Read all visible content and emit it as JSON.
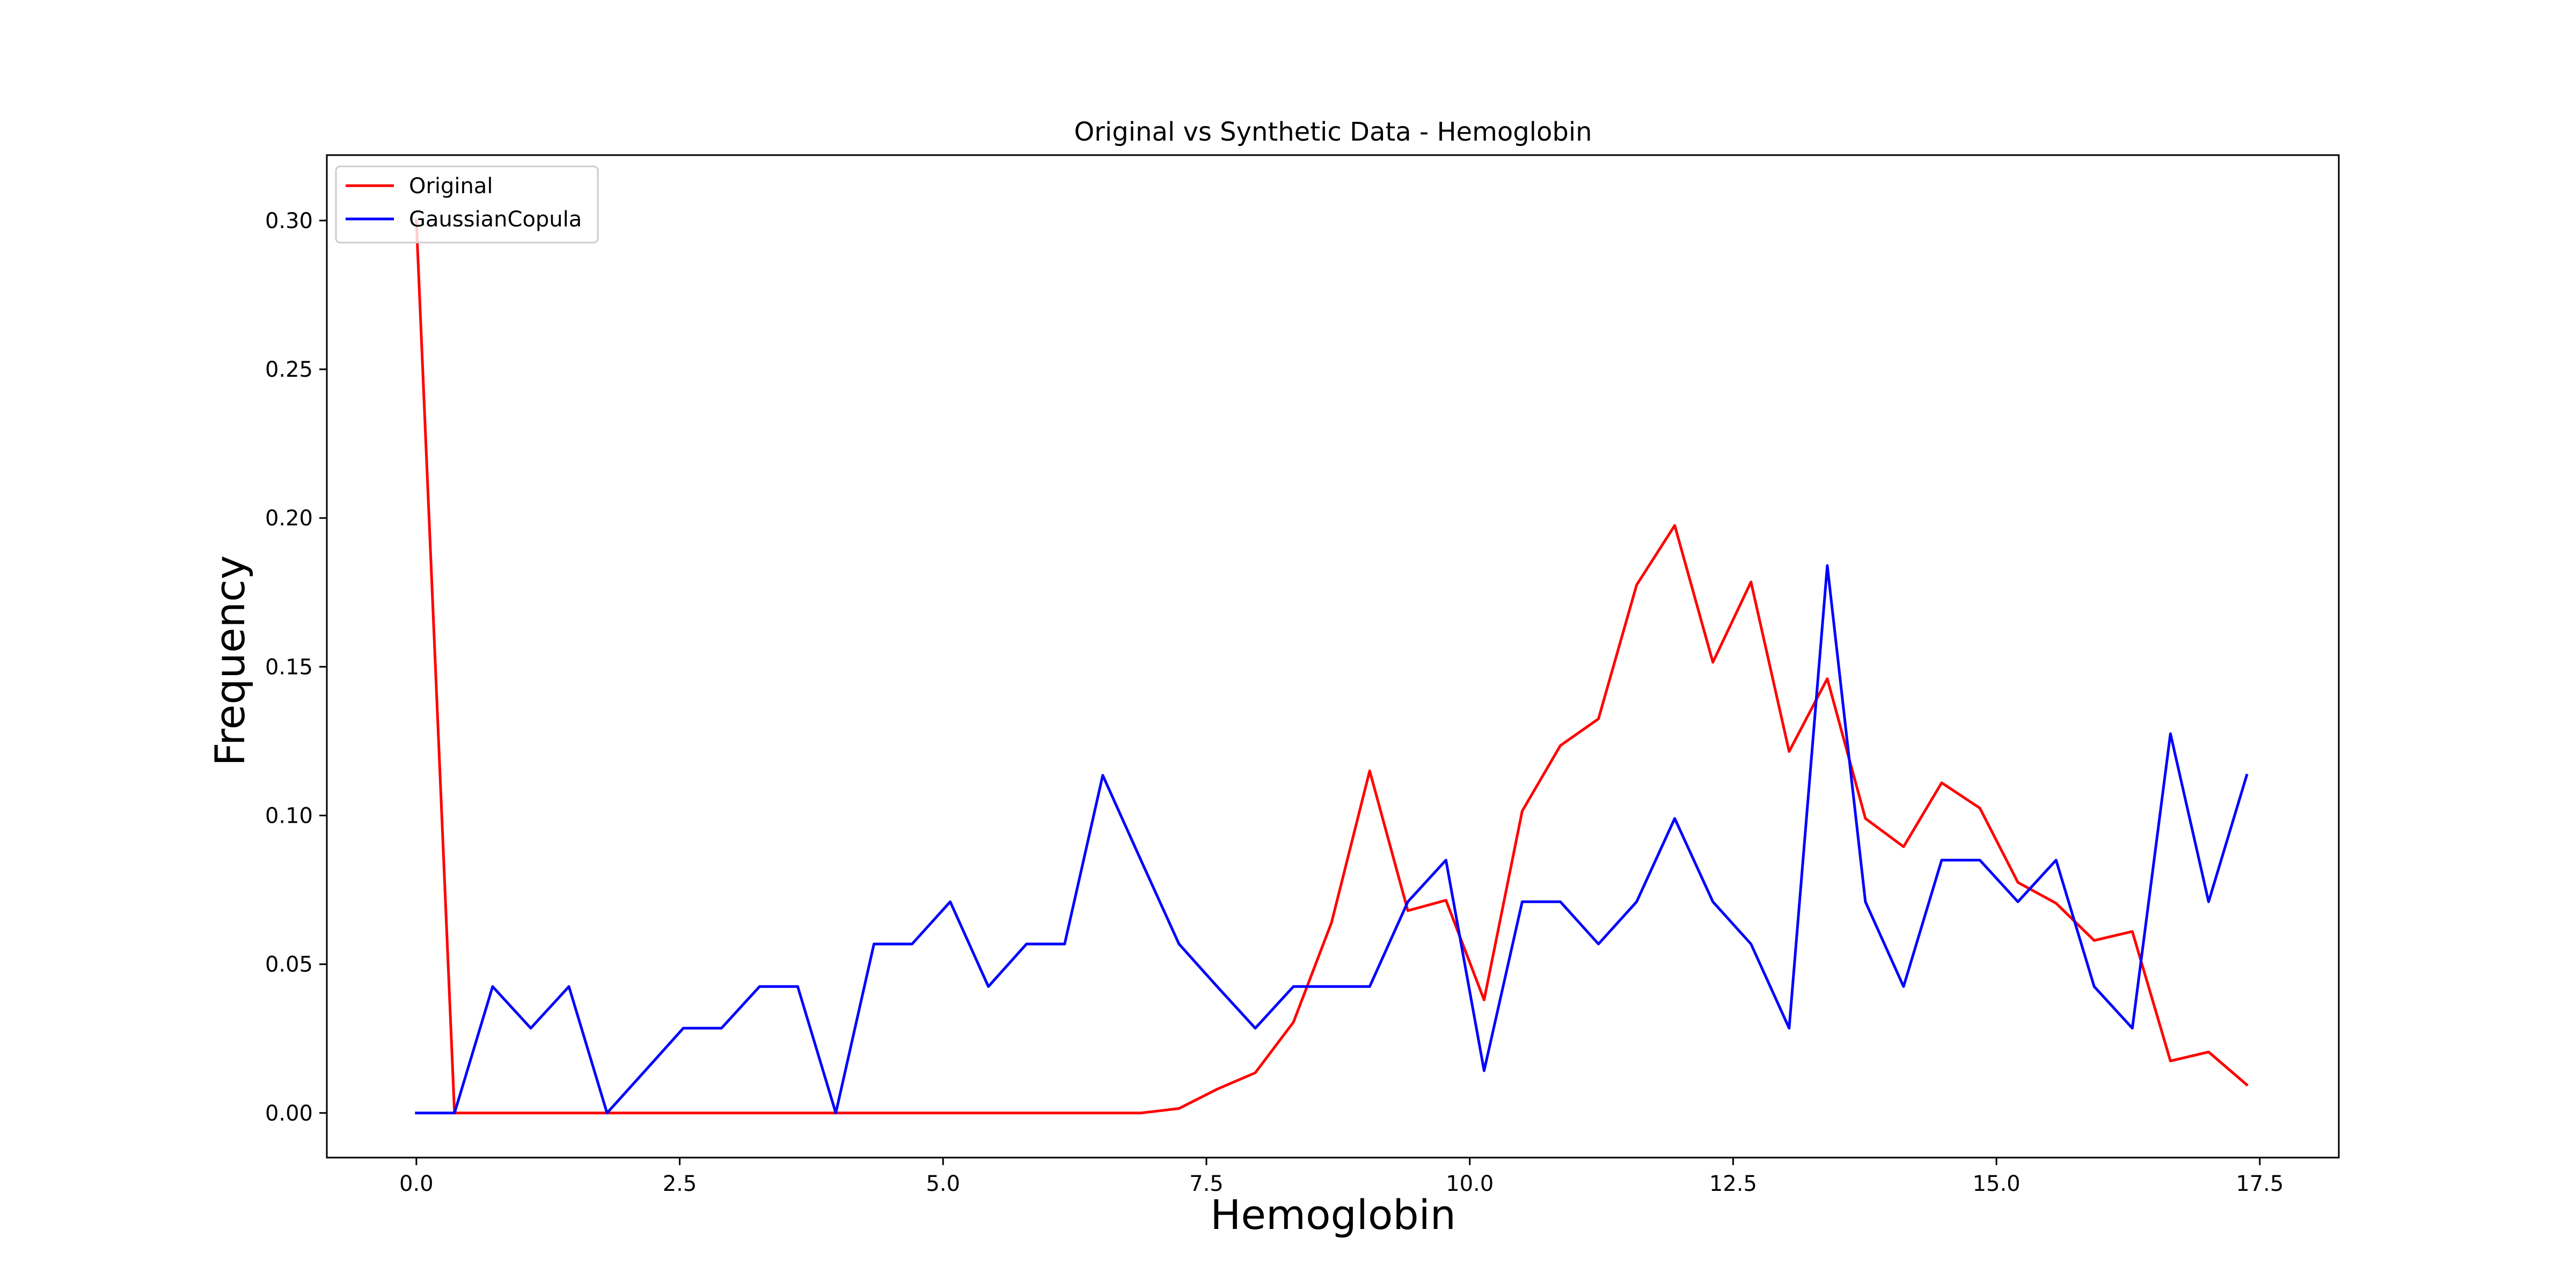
{
  "chart_data": {
    "type": "line",
    "title": "Original vs Synthetic Data - Hemoglobin",
    "xlabel": "Hemoglobin",
    "ylabel": "Frequency",
    "xlim": [
      -0.85,
      18.25
    ],
    "ylim": [
      -0.015,
      0.322
    ],
    "xticks": [
      0.0,
      2.5,
      5.0,
      7.5,
      10.0,
      12.5,
      15.0,
      17.5
    ],
    "xtick_labels": [
      "0.0",
      "2.5",
      "5.0",
      "7.5",
      "10.0",
      "12.5",
      "15.0",
      "17.5"
    ],
    "yticks": [
      0.0,
      0.05,
      0.1,
      0.15,
      0.2,
      0.25,
      0.3
    ],
    "ytick_labels": [
      "0.00",
      "0.05",
      "0.10",
      "0.15",
      "0.20",
      "0.25",
      "0.30"
    ],
    "grid": false,
    "legend_position": "top-left",
    "x": [
      0.0,
      0.362,
      0.724,
      1.086,
      1.448,
      1.81,
      2.172,
      2.534,
      2.896,
      3.258,
      3.62,
      3.982,
      4.344,
      4.706,
      5.068,
      5.43,
      5.792,
      6.154,
      6.516,
      6.878,
      7.24,
      7.602,
      7.964,
      8.326,
      8.688,
      9.05,
      9.412,
      9.774,
      10.136,
      10.498,
      10.86,
      11.222,
      11.584,
      11.946,
      12.308,
      12.67,
      13.032,
      13.394,
      13.756,
      14.118,
      14.48,
      14.842,
      15.204,
      15.566,
      15.928,
      16.29,
      16.652,
      17.014,
      17.376
    ],
    "series": [
      {
        "name": "Original",
        "color": "#ff0000",
        "values": [
          0.3,
          0.0,
          0.0,
          0.0,
          0.0,
          0.0,
          0.0,
          0.0,
          0.0,
          0.0,
          0.0,
          0.0,
          0.0,
          0.0,
          0.0,
          0.0,
          0.0,
          0.0,
          0.0,
          0.0,
          0.0015,
          0.008,
          0.0135,
          0.0305,
          0.064,
          0.115,
          0.068,
          0.0715,
          0.038,
          0.1015,
          0.1235,
          0.1325,
          0.1775,
          0.1975,
          0.1515,
          0.1785,
          0.1215,
          0.146,
          0.099,
          0.0895,
          0.111,
          0.1025,
          0.0775,
          0.0705,
          0.058,
          0.061,
          0.0175,
          0.0205,
          0.0095
        ]
      },
      {
        "name": "GaussianCopula",
        "color": "#0000ff",
        "values": [
          0.0,
          0.0,
          0.0425,
          0.0285,
          0.0425,
          0.0,
          0.0142,
          0.0285,
          0.0285,
          0.0425,
          0.0425,
          0.0,
          0.0568,
          0.0568,
          0.071,
          0.0425,
          0.0568,
          0.0568,
          0.1135,
          0.085,
          0.0568,
          0.0425,
          0.0285,
          0.0425,
          0.0425,
          0.0425,
          0.071,
          0.085,
          0.0142,
          0.071,
          0.071,
          0.0568,
          0.071,
          0.099,
          0.071,
          0.0568,
          0.0285,
          0.184,
          0.071,
          0.0425,
          0.085,
          0.085,
          0.071,
          0.085,
          0.0425,
          0.0285,
          0.1275,
          0.071,
          0.1135
        ]
      }
    ]
  }
}
